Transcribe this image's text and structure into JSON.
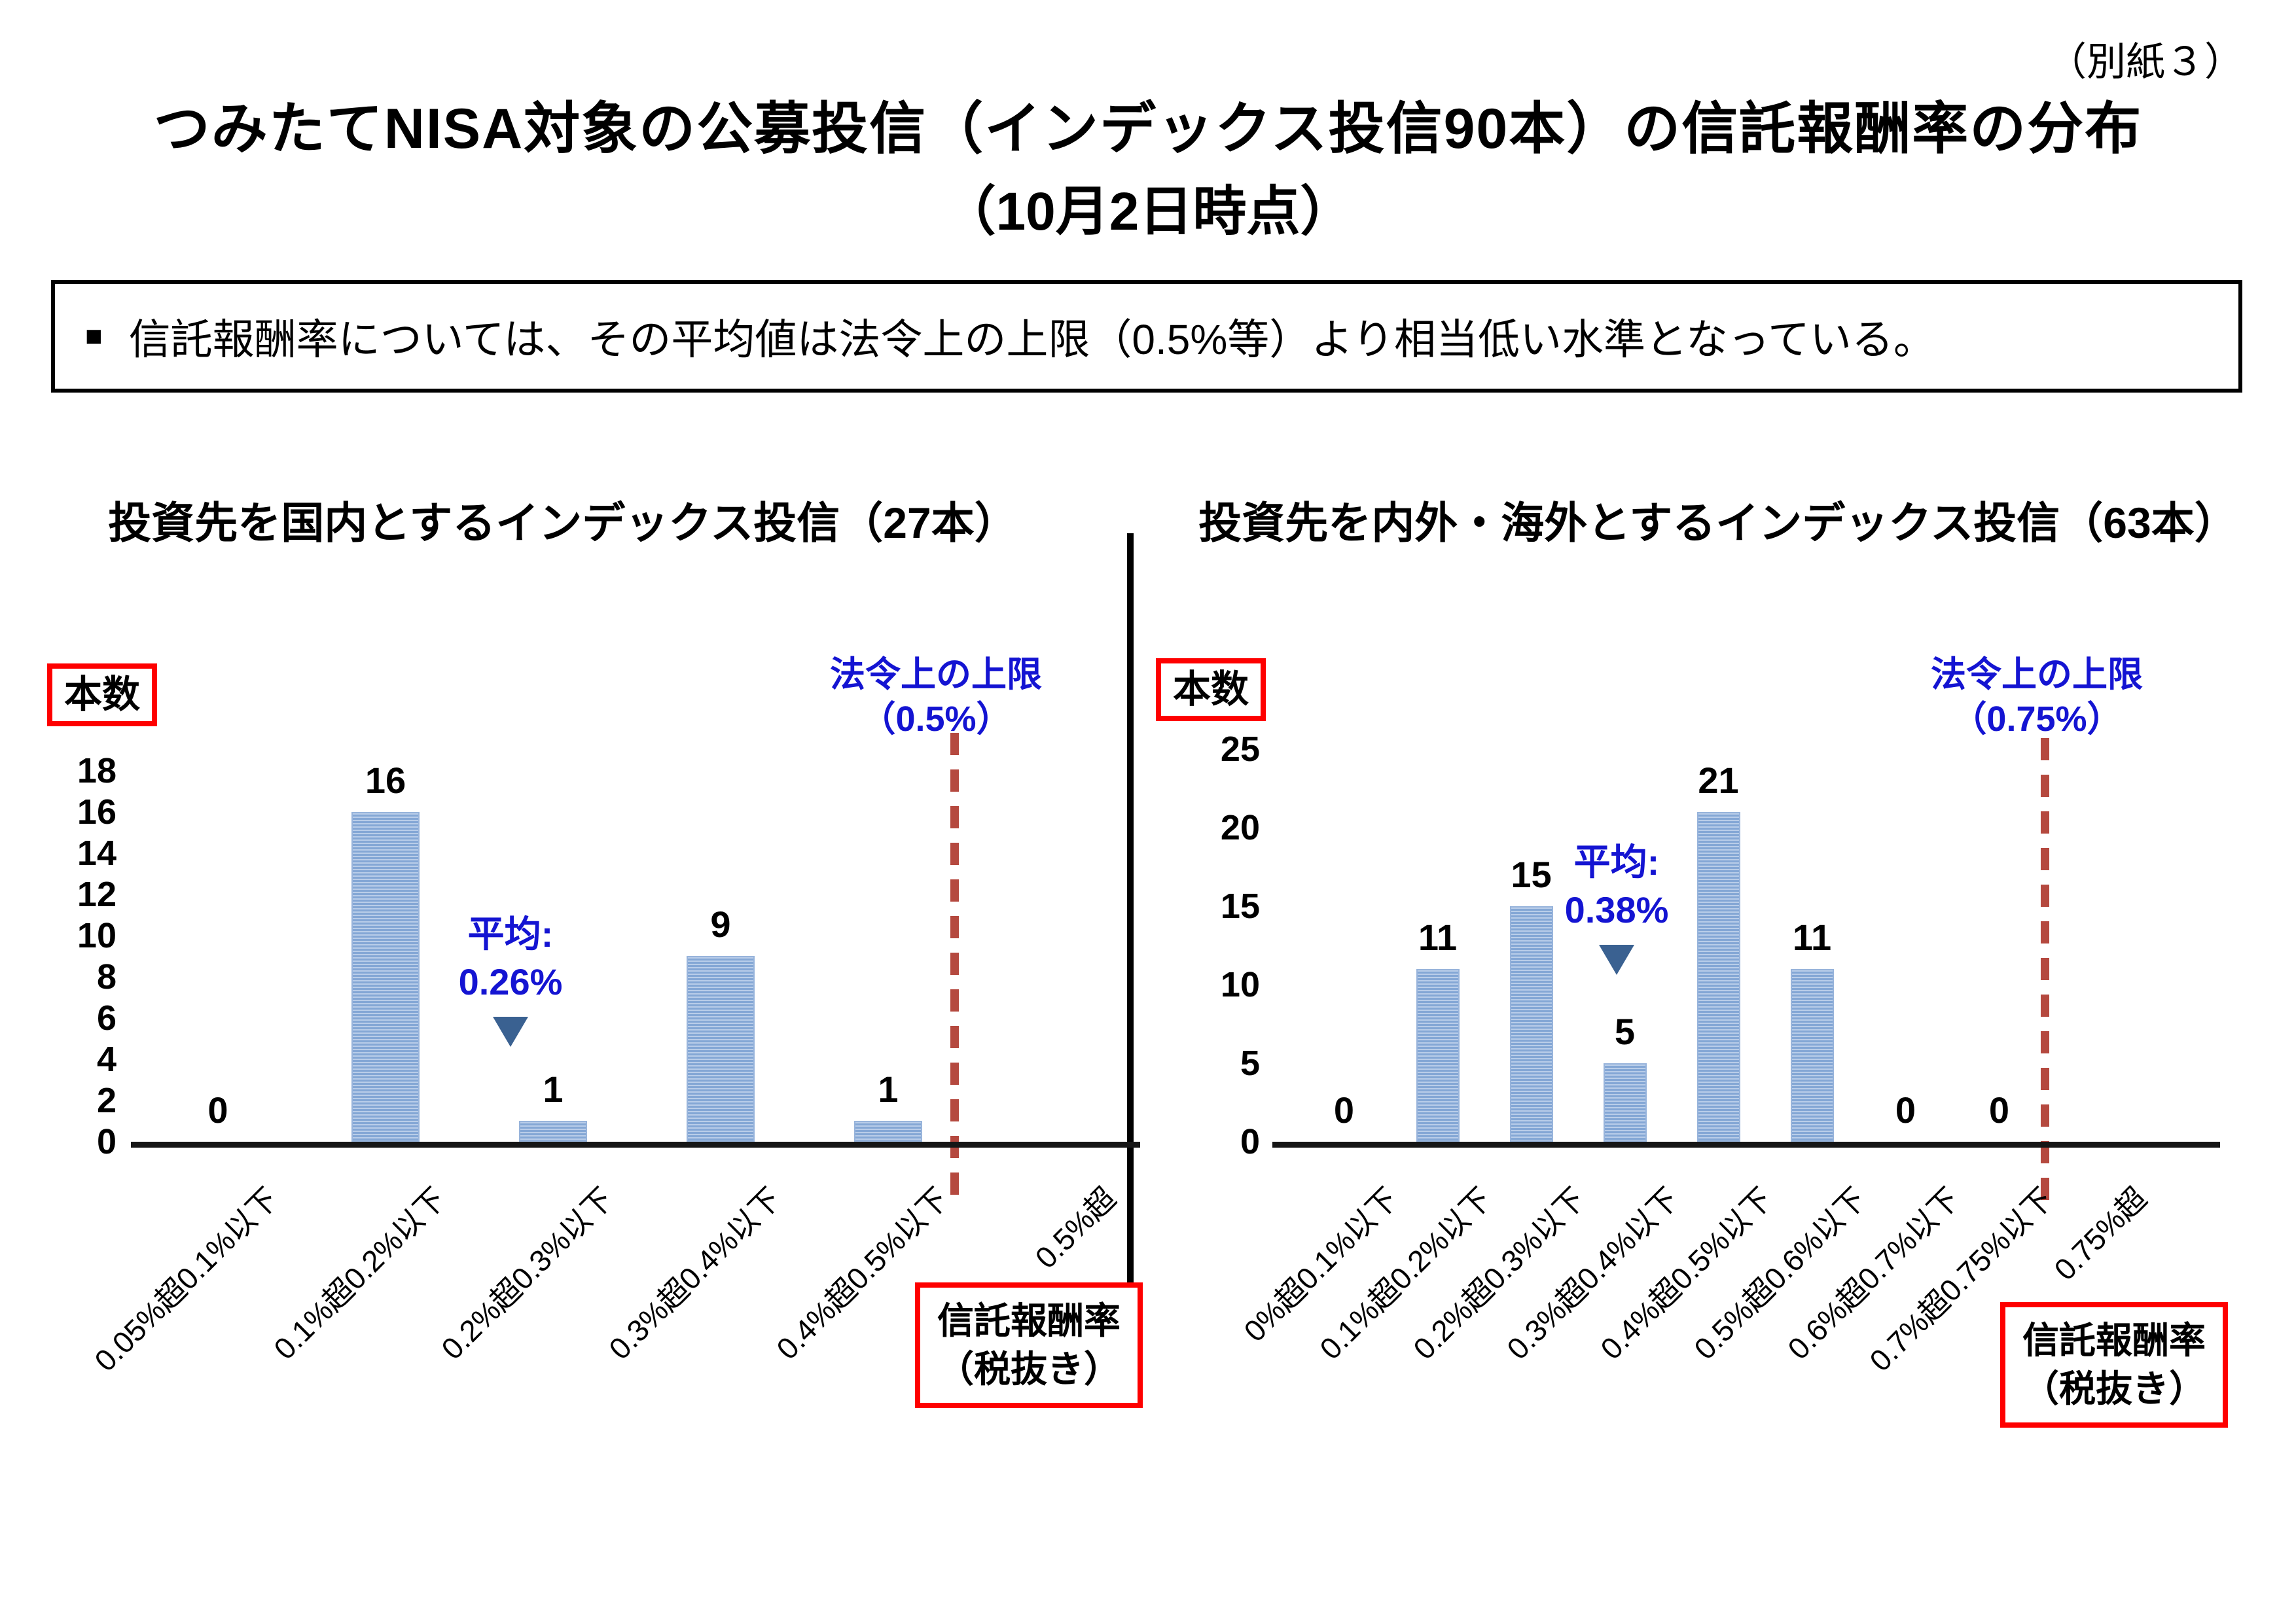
{
  "header": {
    "corner_note": "（別紙３）",
    "title": "つみたてNISA対象の公募投信（インデックス投信90本）の信託報酬率の分布",
    "subtitle": "（10月2日時点）"
  },
  "summary_box": {
    "marker": "■",
    "text": "信託報酬率については、その平均値は法令上の上限（0.5%等）より相当低い水準となっている。"
  },
  "colors": {
    "bar_fill": "#84a7d5",
    "bar_stripe": "#b9cde9",
    "bar_border": "#98b4db",
    "cap_dashed_line": "#b5493f",
    "annotation_blue": "#1414d2",
    "box_border_red": "#fe0000",
    "axis_black": "#161616",
    "mean_marker_triangle": "#3a6191"
  },
  "chart_data": [
    {
      "type": "bar",
      "title": "投資先を国内とするインデックス投信（27本）",
      "ylabel": "本数",
      "xlabel_box": [
        "信託報酬率",
        "（税抜き）"
      ],
      "categories": [
        "0.05%超0.1%以下",
        "0.1%超0.2%以下",
        "0.2%超0.3%以下",
        "0.3%超0.4%以下",
        "0.4%超0.5%以下",
        "0.5%超"
      ],
      "values": [
        0,
        16,
        1,
        9,
        1,
        0
      ],
      "value_labels": [
        "0",
        "16",
        "1",
        "9",
        "1",
        ""
      ],
      "y_ticks": [
        0,
        2,
        4,
        6,
        8,
        10,
        12,
        14,
        16,
        18
      ],
      "ylim": [
        0,
        18
      ],
      "grid": false,
      "legend": "none",
      "mean_annotation": {
        "label": "平均:",
        "value": "0.26%"
      },
      "cap_annotation": {
        "line1": "法令上の上限",
        "line2": "（0.5%）",
        "x_position": "at 0.5% boundary"
      }
    },
    {
      "type": "bar",
      "title": "投資先を内外・海外とするインデックス投信（63本）",
      "ylabel": "本数",
      "xlabel_box": [
        "信託報酬率",
        "（税抜き）"
      ],
      "categories": [
        "0%超0.1%以下",
        "0.1%超0.2%以下",
        "0.2%超0.3%以下",
        "0.3%超0.4%以下",
        "0.4%超0.5%以下",
        "0.5%超0.6%以下",
        "0.6%超0.7%以下",
        "0.7%超0.75%以下",
        "0.75%超"
      ],
      "values": [
        0,
        11,
        15,
        5,
        21,
        11,
        0,
        0,
        0
      ],
      "value_labels": [
        "0",
        "11",
        "15",
        "5",
        "21",
        "11",
        "0",
        "0",
        ""
      ],
      "y_ticks": [
        0,
        5,
        10,
        15,
        20,
        25
      ],
      "ylim": [
        0,
        25
      ],
      "grid": false,
      "legend": "none",
      "mean_annotation": {
        "label": "平均:",
        "value": "0.38%"
      },
      "cap_annotation": {
        "line1": "法令上の上限",
        "line2": "（0.75%）",
        "x_position": "at 0.75% boundary"
      }
    }
  ]
}
